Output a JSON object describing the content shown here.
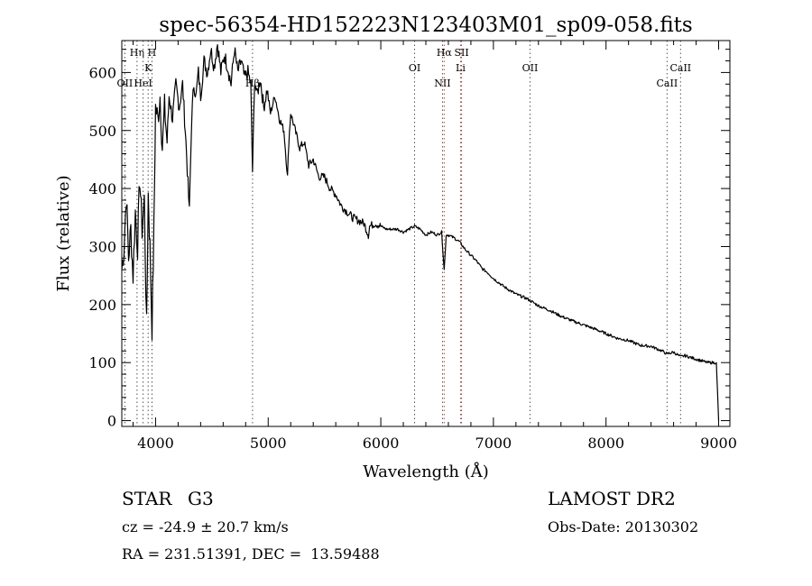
{
  "chart_data": {
    "type": "line",
    "title": "spec-56354-HD152223N123403M01_sp09-058.fits",
    "xlabel": "Wavelength (Å)",
    "ylabel": "Flux (relative)",
    "xlim": [
      3700,
      9100
    ],
    "ylim": [
      -10,
      655
    ],
    "x_ticks": [
      4000,
      5000,
      6000,
      7000,
      8000,
      9000
    ],
    "y_ticks": [
      0,
      100,
      200,
      300,
      400,
      500,
      600
    ],
    "x_minor_step": 200,
    "y_minor_step": 20,
    "series": [
      {
        "name": "flux",
        "x": [
          3700,
          3720,
          3740,
          3760,
          3780,
          3800,
          3820,
          3840,
          3860,
          3880,
          3900,
          3920,
          3935,
          3950,
          3968,
          3985,
          4000,
          4020,
          4040,
          4060,
          4080,
          4102,
          4120,
          4150,
          4180,
          4210,
          4240,
          4270,
          4300,
          4320,
          4340,
          4360,
          4380,
          4400,
          4430,
          4460,
          4490,
          4520,
          4550,
          4580,
          4610,
          4640,
          4670,
          4700,
          4730,
          4760,
          4790,
          4820,
          4845,
          4861,
          4880,
          4900,
          4930,
          4960,
          4990,
          5020,
          5060,
          5100,
          5140,
          5172,
          5183,
          5200,
          5240,
          5280,
          5320,
          5360,
          5400,
          5450,
          5500,
          5550,
          5600,
          5650,
          5700,
          5750,
          5800,
          5850,
          5890,
          5900,
          5950,
          6000,
          6050,
          6100,
          6150,
          6200,
          6250,
          6300,
          6350,
          6400,
          6450,
          6500,
          6540,
          6563,
          6580,
          6600,
          6650,
          6700,
          6750,
          6800,
          6850,
          6900,
          6950,
          7000,
          7100,
          7200,
          7300,
          7400,
          7500,
          7600,
          7700,
          7800,
          7900,
          8000,
          8100,
          8200,
          8300,
          8400,
          8498,
          8542,
          8600,
          8662,
          8700,
          8800,
          8900,
          8980,
          8990,
          9000
        ],
        "y": [
          260,
          300,
          390,
          280,
          330,
          250,
          360,
          300,
          420,
          330,
          380,
          160,
          390,
          300,
          160,
          330,
          540,
          520,
          560,
          470,
          540,
          480,
          560,
          520,
          580,
          540,
          580,
          480,
          360,
          520,
          580,
          560,
          600,
          560,
          620,
          600,
          640,
          610,
          650,
          600,
          630,
          610,
          580,
          640,
          600,
          620,
          590,
          600,
          580,
          430,
          590,
          560,
          590,
          540,
          570,
          530,
          560,
          520,
          500,
          420,
          480,
          530,
          500,
          470,
          480,
          440,
          450,
          420,
          420,
          400,
          390,
          370,
          360,
          350,
          345,
          340,
          320,
          335,
          340,
          335,
          330,
          330,
          330,
          325,
          330,
          335,
          330,
          320,
          325,
          320,
          325,
          260,
          320,
          320,
          315,
          308,
          295,
          285,
          275,
          262,
          255,
          245,
          230,
          218,
          210,
          198,
          190,
          180,
          172,
          165,
          158,
          150,
          142,
          138,
          130,
          128,
          120,
          115,
          118,
          110,
          112,
          106,
          100,
          100,
          50,
          0
        ]
      }
    ],
    "line_markers": [
      {
        "wavelength": 3727,
        "label": "OII",
        "label_row": "low",
        "color": "#555555"
      },
      {
        "wavelength": 3835,
        "label": "Hη",
        "label_row": "top",
        "color": "#555555"
      },
      {
        "wavelength": 3889,
        "label": "HeI",
        "label_row": "low",
        "color": "#555555"
      },
      {
        "wavelength": 3934,
        "label": "K",
        "label_row": "mid",
        "color": "#555555"
      },
      {
        "wavelength": 3968,
        "label": "H",
        "label_row": "top",
        "color": "#555555"
      },
      {
        "wavelength": 4861,
        "label": "Hβ",
        "label_row": "low",
        "color": "#555555"
      },
      {
        "wavelength": 6300,
        "label": "OI",
        "label_row": "mid",
        "color": "#555555"
      },
      {
        "wavelength": 6548,
        "label": "NII",
        "label_row": "low",
        "color": "#555555"
      },
      {
        "wavelength": 6563,
        "label": "Hα",
        "label_row": "top",
        "color": "#d04040"
      },
      {
        "wavelength": 6708,
        "label": "Li",
        "label_row": "mid",
        "color": "#d04040"
      },
      {
        "wavelength": 6717,
        "label": "SII",
        "label_row": "top",
        "color": "#555555"
      },
      {
        "wavelength": 7325,
        "label": "OII",
        "label_row": "mid",
        "color": "#555555"
      },
      {
        "wavelength": 8542,
        "label": "CaII",
        "label_row": "low",
        "color": "#555555"
      },
      {
        "wavelength": 8662,
        "label": "CaII",
        "label_row": "mid",
        "color": "#555555"
      }
    ]
  },
  "footer": {
    "class_label": "STAR",
    "subclass": "G3",
    "survey": "LAMOST DR2",
    "cz_line": "cz = -24.9 ± 20.7 km/s",
    "obs_date": "Obs-Date: 20130302",
    "coords": "RA = 231.51391, DEC =  13.59488"
  },
  "colors": {
    "line": "#000000",
    "marker_default": "#555555",
    "marker_red": "#d04040"
  }
}
